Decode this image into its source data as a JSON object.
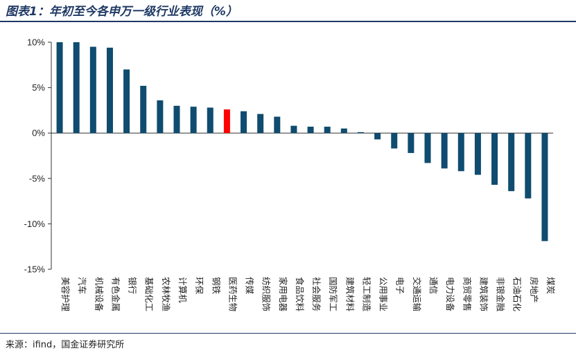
{
  "title": "图表1：年初至今各申万一级行业表现（%）",
  "source": "来源：ifind，国金证券研究所",
  "colors": {
    "bar": "#0f4c6f",
    "highlight": "#ff0000",
    "title": "#1f3864"
  },
  "chart_data": {
    "type": "bar",
    "title": "图表1：年初至今各申万一级行业表现（%）",
    "xlabel": "",
    "ylabel": "",
    "ylim": [
      -15,
      10
    ],
    "yticks": [
      10,
      5,
      0,
      -5,
      -10,
      -15
    ],
    "ytick_labels": [
      "10%",
      "5%",
      "0%",
      "-5%",
      "-10%",
      "-15%"
    ],
    "grid": false,
    "legend": "none",
    "highlight_category": "医药生物",
    "categories": [
      "美容护理",
      "汽车",
      "机械设备",
      "有色金属",
      "银行",
      "基础化工",
      "农林牧渔",
      "计算机",
      "环保",
      "钢铁",
      "医药生物",
      "传媒",
      "纺织服饰",
      "家用电器",
      "食品饮料",
      "社会服务",
      "国防军工",
      "建筑材料",
      "轻工制造",
      "公用事业",
      "电子",
      "交通运输",
      "通信",
      "电力设备",
      "商贸零售",
      "建筑装饰",
      "非银金融",
      "石油石化",
      "房地产",
      "煤炭"
    ],
    "values": [
      10.0,
      10.0,
      9.5,
      9.4,
      7.0,
      5.2,
      3.6,
      3.0,
      2.9,
      2.8,
      2.6,
      2.4,
      2.1,
      1.8,
      0.8,
      0.7,
      0.7,
      0.5,
      0.1,
      -0.7,
      -1.7,
      -2.2,
      -3.3,
      -3.9,
      -4.2,
      -4.6,
      -5.7,
      -6.4,
      -7.2,
      -11.9
    ]
  }
}
